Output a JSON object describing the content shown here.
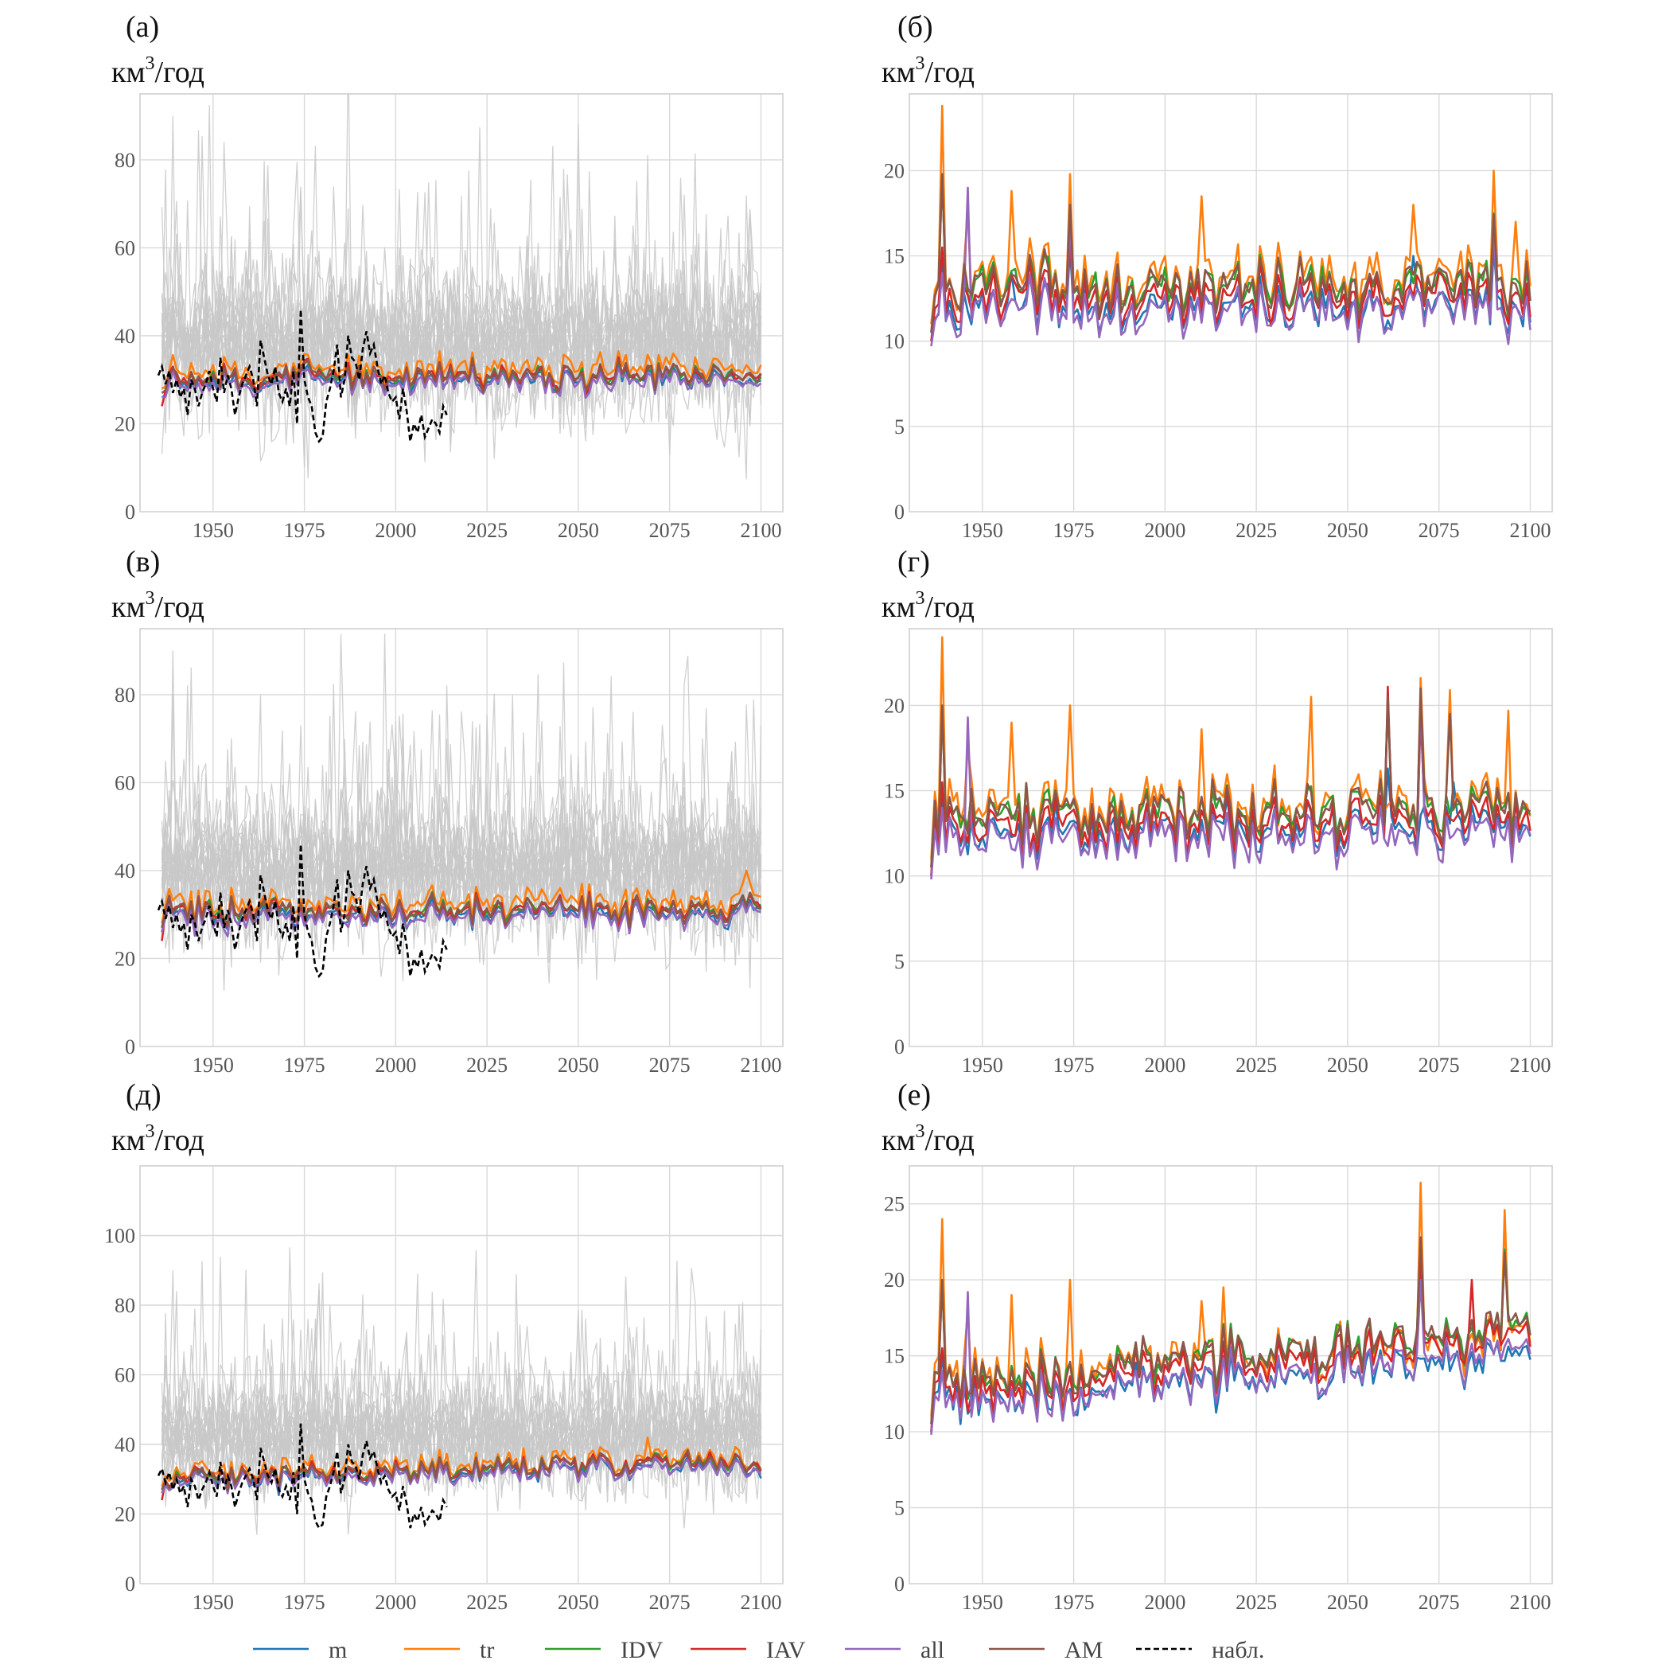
{
  "unit_label": "км",
  "unit_superscript": "3",
  "unit_suffix": "/год",
  "colors": {
    "m": "#1f77b4",
    "tr": "#ff7f0e",
    "IDV": "#2ca02c",
    "IAV": "#d62728",
    "all": "#9467bd",
    "AM": "#8c564b",
    "obs": "#000000",
    "ensemble": "#c8c8c8"
  },
  "legend": [
    {
      "key": "m",
      "label": "m",
      "style": "solid"
    },
    {
      "key": "tr",
      "label": "tr",
      "style": "solid"
    },
    {
      "key": "IDV",
      "label": "IDV",
      "style": "solid"
    },
    {
      "key": "IAV",
      "label": "IAV",
      "style": "solid"
    },
    {
      "key": "all",
      "label": "all",
      "style": "solid"
    },
    {
      "key": "AM",
      "label": "AM",
      "style": "solid"
    },
    {
      "key": "obs",
      "label": "набл.",
      "style": "dashed"
    }
  ],
  "chart_data": [
    {
      "panel": "(а)",
      "type": "line",
      "ylim": [
        0,
        95
      ],
      "xlim": [
        1930,
        2106
      ],
      "xticks": [
        1950,
        1975,
        2000,
        2025,
        2050,
        2075,
        2100
      ],
      "yticks": [
        0,
        20,
        40,
        60,
        80
      ],
      "has_ensemble": true,
      "has_obs": true,
      "series": [
        {
          "name": "m",
          "base": 29.5,
          "trend": 0.4,
          "start": 26,
          "amp": 2.5,
          "spikes": []
        },
        {
          "name": "tr",
          "base": 32,
          "trend": 0.6,
          "start": 28,
          "amp": 3,
          "spikes": []
        },
        {
          "name": "IDV",
          "base": 30.5,
          "trend": 0.3,
          "start": 27,
          "amp": 2.5,
          "spikes": []
        },
        {
          "name": "IAV",
          "base": 30.5,
          "trend": 0.4,
          "start": 24,
          "amp": 2.5,
          "spikes": []
        },
        {
          "name": "all",
          "base": 29,
          "trend": 0.5,
          "start": 26,
          "amp": 2.5,
          "spikes": []
        },
        {
          "name": "AM",
          "base": 30.5,
          "trend": 0.4,
          "start": 27,
          "amp": 2.5,
          "spikes": []
        }
      ],
      "obs": {
        "start_year": 1935,
        "end_year": 2014,
        "values": [
          31,
          33,
          29,
          32,
          27,
          30,
          26,
          28,
          22,
          30,
          28,
          24,
          27,
          29,
          32,
          28,
          25,
          35,
          27,
          31,
          28,
          22,
          26,
          29,
          31,
          33,
          30,
          24,
          39,
          35,
          31,
          29,
          33,
          27,
          25,
          28,
          24,
          32,
          20,
          46,
          30,
          26,
          24,
          18,
          16,
          17,
          25,
          28,
          32,
          38,
          26,
          30,
          40,
          35,
          34,
          30,
          37,
          41,
          36,
          38,
          33,
          29,
          31,
          27,
          25,
          26,
          21,
          28,
          23,
          16,
          20,
          18,
          22,
          17,
          19,
          21,
          20,
          18,
          24,
          22
        ]
      }
    },
    {
      "panel": "(б)",
      "type": "line",
      "ylim": [
        0,
        24.5
      ],
      "xlim": [
        1930,
        2106
      ],
      "xticks": [
        1950,
        1975,
        2000,
        2025,
        2050,
        2075,
        2100
      ],
      "yticks": [
        0,
        5,
        10,
        15,
        20
      ],
      "has_ensemble": false,
      "has_obs": false,
      "series": [
        {
          "name": "m",
          "base": 12,
          "trend": 0,
          "start": 10,
          "amp": 1.2,
          "spikes": [
            [
              1939,
              15
            ],
            [
              1958,
              14
            ],
            [
              1974,
              15.5
            ],
            [
              2068,
              15
            ],
            [
              2090,
              15.5
            ]
          ]
        },
        {
          "name": "tr",
          "base": 13.8,
          "trend": 0,
          "start": 11,
          "amp": 1.5,
          "spikes": [
            [
              1939,
              23.8
            ],
            [
              1946,
              17.6
            ],
            [
              1958,
              18.8
            ],
            [
              1974,
              19.8
            ],
            [
              2010,
              18.5
            ],
            [
              2068,
              18
            ],
            [
              2090,
              20
            ],
            [
              2096,
              17
            ]
          ]
        },
        {
          "name": "IDV",
          "base": 13.3,
          "trend": 0,
          "start": 10.5,
          "amp": 1.3,
          "spikes": [
            [
              1939,
              19.8
            ],
            [
              1974,
              18
            ],
            [
              2090,
              17.5
            ]
          ]
        },
        {
          "name": "IAV",
          "base": 12.6,
          "trend": 0,
          "start": 10,
          "amp": 1.3,
          "spikes": [
            [
              1939,
              15.5
            ],
            [
              1974,
              16
            ],
            [
              2090,
              16.5
            ]
          ]
        },
        {
          "name": "all",
          "base": 11.8,
          "trend": 0,
          "start": 9.7,
          "amp": 1.2,
          "spikes": [
            [
              1939,
              14
            ],
            [
              1946,
              19
            ],
            [
              1974,
              17.5
            ],
            [
              2090,
              17
            ]
          ]
        },
        {
          "name": "AM",
          "base": 13.3,
          "trend": 0,
          "start": 10.5,
          "amp": 1.3,
          "spikes": [
            [
              1939,
              19.8
            ],
            [
              1974,
              18
            ],
            [
              2090,
              17.4
            ]
          ]
        }
      ]
    },
    {
      "panel": "(в)",
      "type": "line",
      "ylim": [
        0,
        95
      ],
      "xlim": [
        1930,
        2106
      ],
      "xticks": [
        1950,
        1975,
        2000,
        2025,
        2050,
        2075,
        2100
      ],
      "yticks": [
        0,
        20,
        40,
        60,
        80
      ],
      "has_ensemble": true,
      "has_obs": true,
      "series": [
        {
          "name": "m",
          "base": 29.5,
          "trend": 0.8,
          "start": 26,
          "amp": 2.5,
          "spikes": []
        },
        {
          "name": "tr",
          "base": 32,
          "trend": 1.5,
          "start": 28,
          "amp": 3,
          "spikes": [
            [
              2096,
              40
            ]
          ]
        },
        {
          "name": "IDV",
          "base": 30.5,
          "trend": 1,
          "start": 27,
          "amp": 2.5,
          "spikes": []
        },
        {
          "name": "IAV",
          "base": 30.5,
          "trend": 1,
          "start": 24,
          "amp": 2.5,
          "spikes": []
        },
        {
          "name": "all",
          "base": 29,
          "trend": 1,
          "start": 26,
          "amp": 2.5,
          "spikes": []
        },
        {
          "name": "AM",
          "base": 30.5,
          "trend": 1,
          "start": 27,
          "amp": 2.5,
          "spikes": []
        }
      ],
      "obs": {
        "start_year": 1935,
        "end_year": 2014,
        "values": [
          31,
          33,
          29,
          32,
          27,
          30,
          26,
          28,
          22,
          30,
          28,
          24,
          27,
          29,
          32,
          28,
          25,
          35,
          27,
          31,
          28,
          22,
          26,
          29,
          31,
          33,
          30,
          24,
          39,
          35,
          31,
          29,
          33,
          27,
          25,
          28,
          24,
          32,
          20,
          46,
          30,
          26,
          24,
          18,
          16,
          17,
          25,
          28,
          32,
          38,
          26,
          30,
          40,
          35,
          34,
          30,
          37,
          41,
          36,
          38,
          33,
          29,
          31,
          27,
          25,
          26,
          21,
          28,
          23,
          16,
          20,
          18,
          22,
          17,
          19,
          21,
          20,
          18,
          24,
          22
        ]
      }
    },
    {
      "panel": "(г)",
      "type": "line",
      "ylim": [
        0,
        24.5
      ],
      "xlim": [
        1930,
        2106
      ],
      "xticks": [
        1950,
        1975,
        2000,
        2025,
        2050,
        2075,
        2100
      ],
      "yticks": [
        0,
        5,
        10,
        15,
        20
      ],
      "has_ensemble": false,
      "has_obs": false,
      "series": [
        {
          "name": "m",
          "base": 12.2,
          "trend": 1,
          "start": 10,
          "amp": 1.2,
          "spikes": [
            [
              1939,
              15
            ],
            [
              2061,
              16.3
            ],
            [
              2079,
              15.5
            ]
          ]
        },
        {
          "name": "tr",
          "base": 13.8,
          "trend": 0.8,
          "start": 11,
          "amp": 1.5,
          "spikes": [
            [
              1939,
              24
            ],
            [
              1946,
              17.5
            ],
            [
              1958,
              19
            ],
            [
              1974,
              20
            ],
            [
              2010,
              18.6
            ],
            [
              2040,
              20.5
            ],
            [
              2070,
              21.6
            ],
            [
              2078,
              20.9
            ],
            [
              2094,
              19.7
            ]
          ]
        },
        {
          "name": "IDV",
          "base": 13.4,
          "trend": 0.9,
          "start": 10.5,
          "amp": 1.3,
          "spikes": [
            [
              1939,
              20
            ],
            [
              2061,
              20
            ],
            [
              2070,
              20.5
            ]
          ]
        },
        {
          "name": "IAV",
          "base": 12.6,
          "trend": 1,
          "start": 10,
          "amp": 1.3,
          "spikes": [
            [
              1939,
              15.5
            ],
            [
              2061,
              21.1
            ],
            [
              2070,
              19.5
            ]
          ]
        },
        {
          "name": "all",
          "base": 11.8,
          "trend": 1,
          "start": 9.8,
          "amp": 1.2,
          "spikes": [
            [
              1939,
              14
            ],
            [
              1946,
              19.3
            ],
            [
              2070,
              20.3
            ]
          ]
        },
        {
          "name": "AM",
          "base": 13.4,
          "trend": 0.9,
          "start": 10.5,
          "amp": 1.3,
          "spikes": [
            [
              1939,
              20
            ],
            [
              2061,
              20.5
            ],
            [
              2070,
              21
            ],
            [
              2078,
              19.5
            ]
          ]
        }
      ]
    },
    {
      "panel": "(д)",
      "type": "line",
      "ylim": [
        0,
        120
      ],
      "xlim": [
        1930,
        2106
      ],
      "xticks": [
        1950,
        1975,
        2000,
        2025,
        2050,
        2075,
        2100
      ],
      "yticks": [
        0,
        20,
        40,
        60,
        80,
        100
      ],
      "has_ensemble": true,
      "has_obs": true,
      "series": [
        {
          "name": "m",
          "base": 29,
          "trend": 5,
          "start": 26,
          "amp": 2.5,
          "spikes": []
        },
        {
          "name": "tr",
          "base": 31.5,
          "trend": 5,
          "start": 28,
          "amp": 3,
          "spikes": [
            [
              2069,
              42
            ]
          ]
        },
        {
          "name": "IDV",
          "base": 30,
          "trend": 5.5,
          "start": 27,
          "amp": 2.5,
          "spikes": []
        },
        {
          "name": "IAV",
          "base": 30,
          "trend": 5.5,
          "start": 24,
          "amp": 2.5,
          "spikes": []
        },
        {
          "name": "all",
          "base": 28.5,
          "trend": 5.5,
          "start": 26,
          "amp": 2.5,
          "spikes": []
        },
        {
          "name": "AM",
          "base": 30,
          "trend": 5.5,
          "start": 27,
          "amp": 2.5,
          "spikes": []
        }
      ],
      "obs": {
        "start_year": 1935,
        "end_year": 2014,
        "values": [
          31,
          33,
          29,
          32,
          27,
          30,
          26,
          28,
          22,
          30,
          28,
          24,
          27,
          29,
          32,
          28,
          25,
          35,
          27,
          31,
          28,
          22,
          26,
          29,
          31,
          33,
          30,
          24,
          39,
          35,
          31,
          29,
          33,
          27,
          25,
          28,
          24,
          32,
          20,
          46,
          30,
          26,
          24,
          18,
          16,
          17,
          25,
          28,
          32,
          38,
          26,
          30,
          40,
          35,
          34,
          30,
          37,
          41,
          36,
          38,
          33,
          29,
          31,
          27,
          25,
          26,
          21,
          28,
          23,
          16,
          20,
          18,
          22,
          17,
          19,
          21,
          20,
          18,
          24,
          22
        ]
      }
    },
    {
      "panel": "(е)",
      "type": "line",
      "ylim": [
        0,
        27.5
      ],
      "xlim": [
        1930,
        2106
      ],
      "xticks": [
        1950,
        1975,
        2000,
        2025,
        2050,
        2075,
        2100
      ],
      "yticks": [
        0,
        5,
        10,
        15,
        20,
        25
      ],
      "has_ensemble": false,
      "has_obs": false,
      "series": [
        {
          "name": "m",
          "base": 12,
          "trend": 3,
          "start": 10,
          "amp": 1.2,
          "spikes": [
            [
              1939,
              15
            ]
          ]
        },
        {
          "name": "tr",
          "base": 13.8,
          "trend": 2.5,
          "start": 11,
          "amp": 1.5,
          "spikes": [
            [
              1939,
              24
            ],
            [
              1946,
              18
            ],
            [
              1958,
              19
            ],
            [
              1974,
              20
            ],
            [
              2010,
              18.6
            ],
            [
              2016,
              19.5
            ],
            [
              2070,
              26.4
            ],
            [
              2093,
              24.6
            ]
          ]
        },
        {
          "name": "IDV",
          "base": 13.3,
          "trend": 3.5,
          "start": 10.5,
          "amp": 1.3,
          "spikes": [
            [
              1939,
              20
            ],
            [
              2070,
              22.5
            ],
            [
              2093,
              22
            ]
          ]
        },
        {
          "name": "IAV",
          "base": 12.6,
          "trend": 3.7,
          "start": 10,
          "amp": 1.3,
          "spikes": [
            [
              1939,
              15.5
            ],
            [
              2070,
              21
            ],
            [
              2084,
              20
            ]
          ]
        },
        {
          "name": "all",
          "base": 11.8,
          "trend": 3.5,
          "start": 9.8,
          "amp": 1.2,
          "spikes": [
            [
              1939,
              14
            ],
            [
              1946,
              19.2
            ],
            [
              2070,
              20
            ]
          ]
        },
        {
          "name": "AM",
          "base": 13.3,
          "trend": 3.5,
          "start": 10.5,
          "amp": 1.3,
          "spikes": [
            [
              1939,
              20
            ],
            [
              2070,
              22.8
            ],
            [
              2093,
              21.8
            ]
          ]
        }
      ]
    }
  ]
}
